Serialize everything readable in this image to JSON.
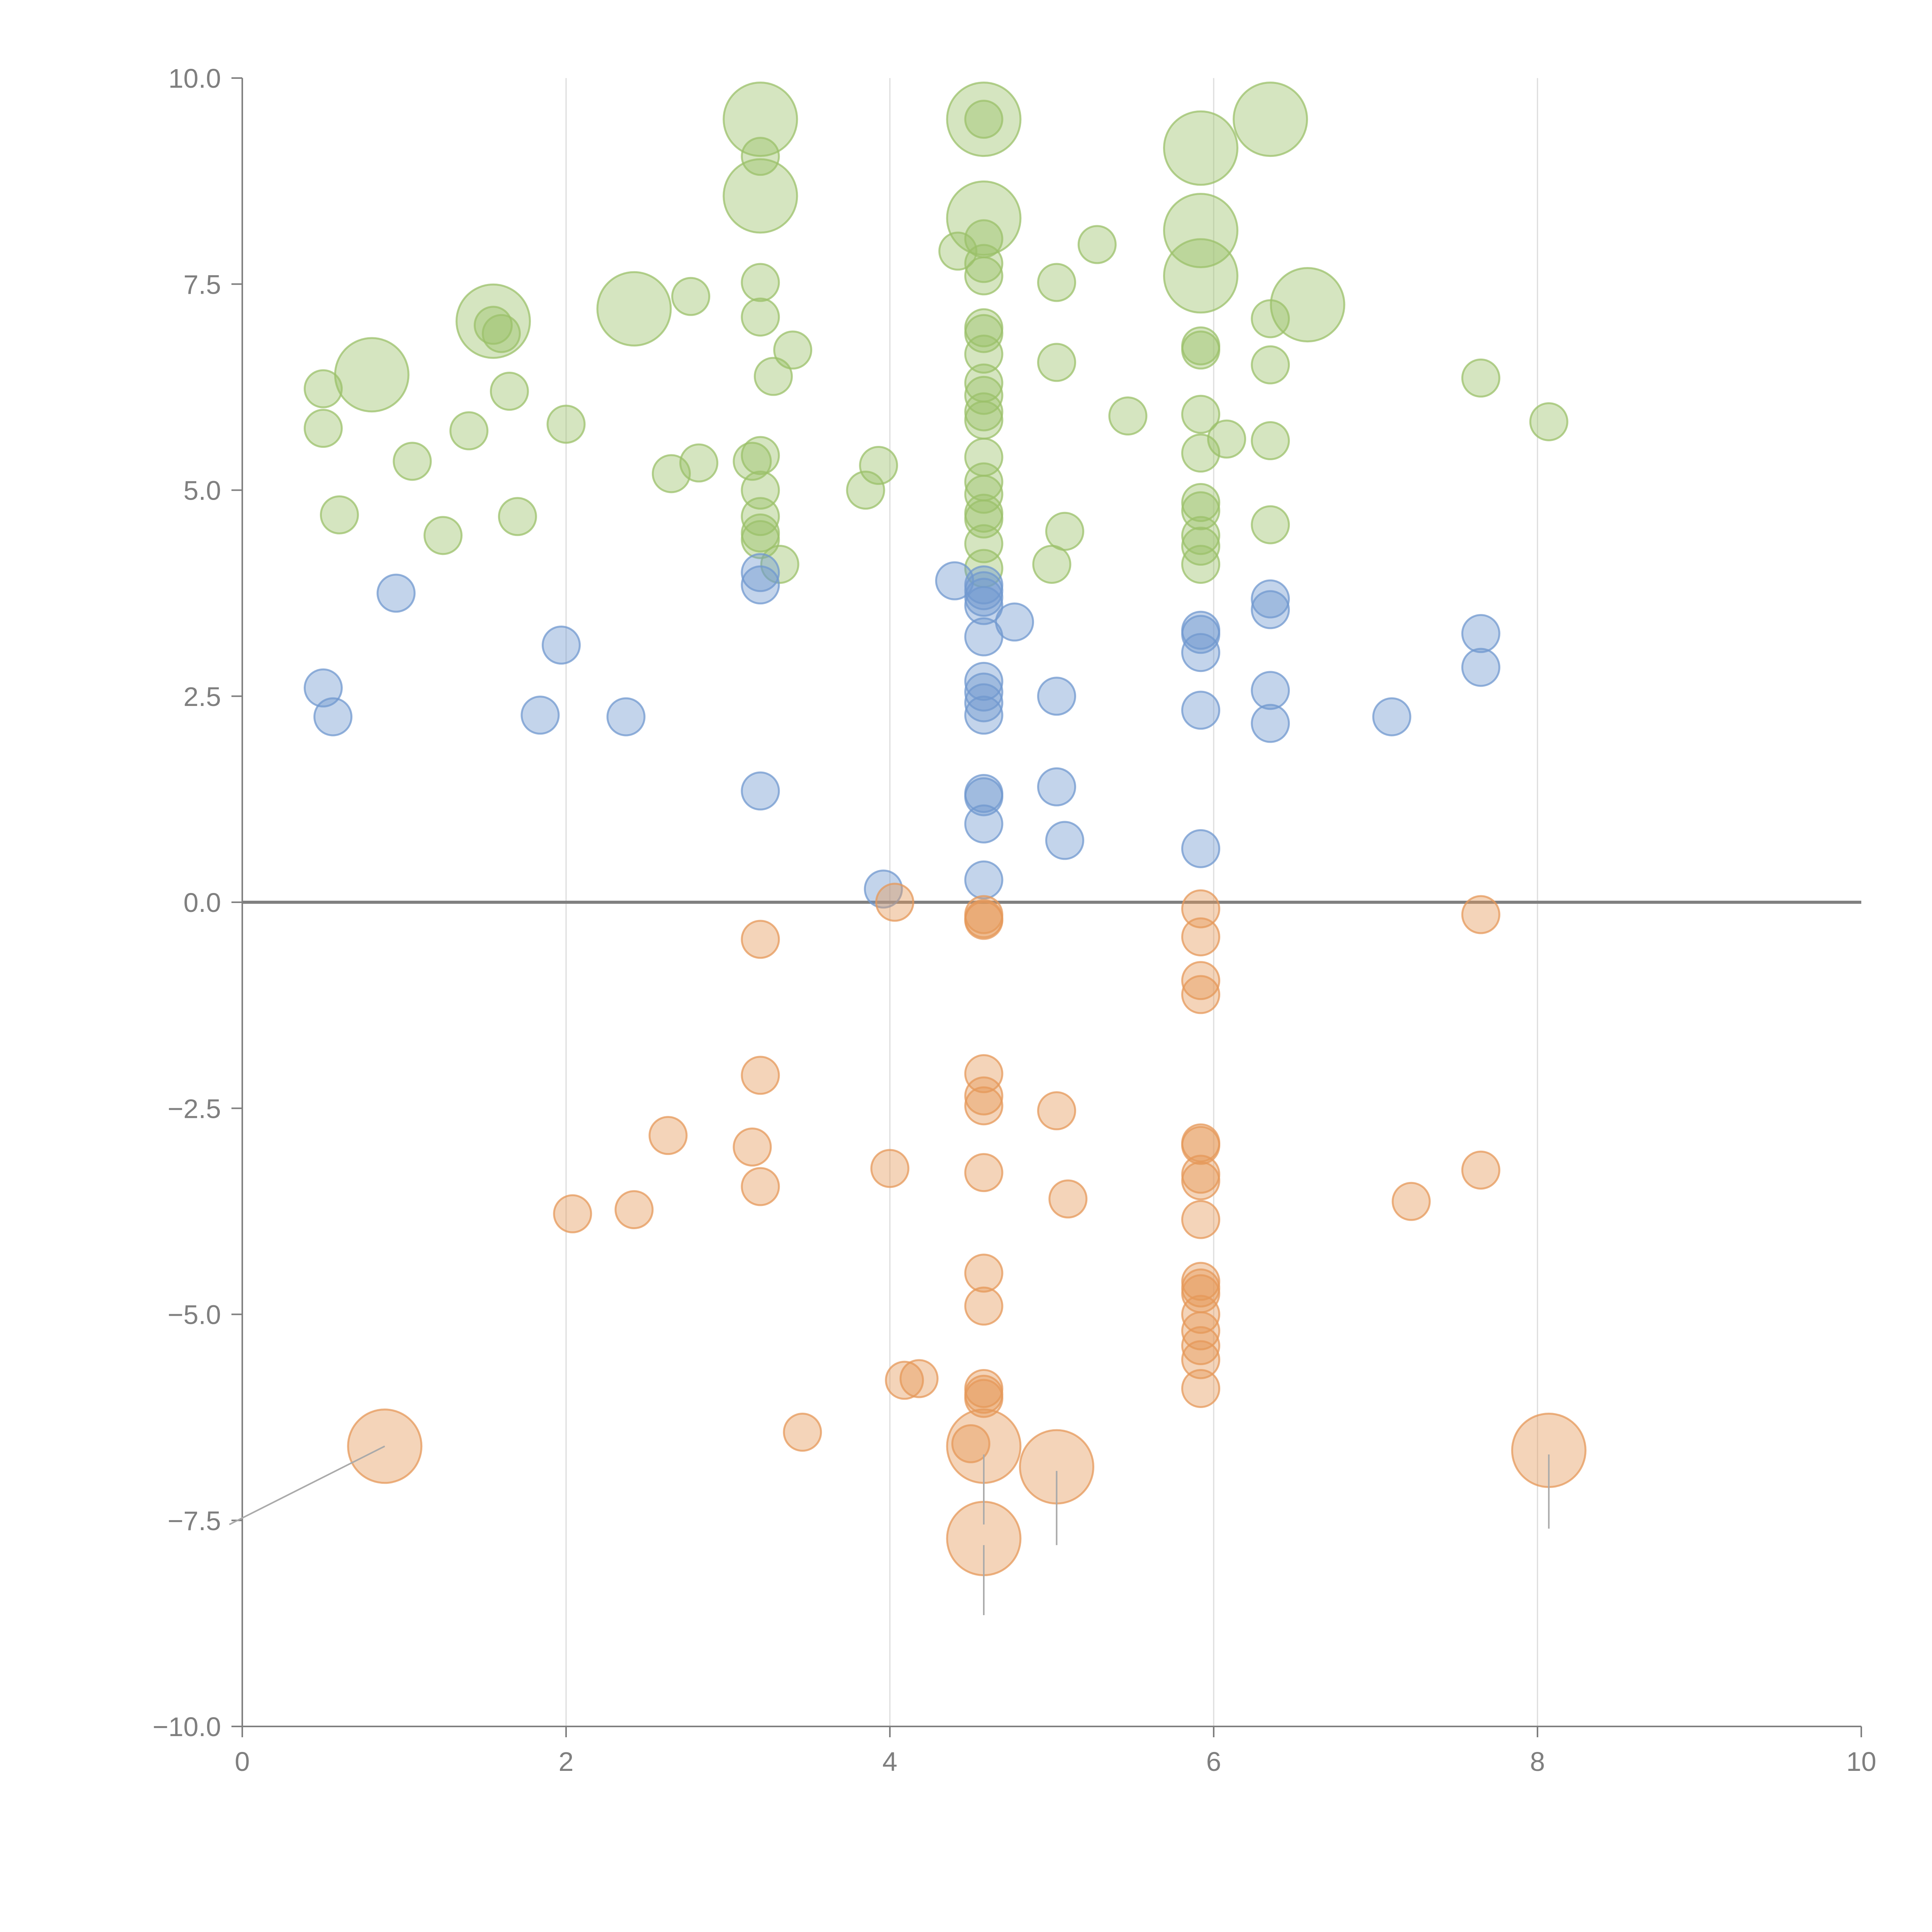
{
  "chart_data": {
    "type": "scatter",
    "title": "",
    "xlabel": "",
    "ylabel": "",
    "xlim": [
      0,
      10
    ],
    "ylim": [
      -10,
      10
    ],
    "grid": "vertical",
    "reference_line_y": 0,
    "x_ticks": [
      0,
      2,
      4,
      6,
      8,
      10
    ],
    "x_tick_labels": [
      "0",
      "2",
      "4",
      "6",
      "8",
      "10"
    ],
    "y_ticks": [
      -10,
      -7.5,
      -5,
      -2.5,
      0,
      2.5,
      5,
      7.5,
      10
    ],
    "y_tick_labels": [
      "−10.0",
      "−7.5",
      "−5.0",
      "−2.5",
      "0.0",
      "2.5",
      "5.0",
      "7.5",
      "10.0"
    ],
    "colors": {
      "green": "#9bc06a",
      "blue": "#7098cf",
      "orange": "#e59859",
      "axis": "#7f7f7f",
      "grid": "#dcdcdc",
      "label_text": "#ffffff"
    },
    "series": [
      {
        "name": "green",
        "color": "#9bc06a",
        "points": [
          {
            "x": 3.2,
            "y": 9.5,
            "size": 3
          },
          {
            "x": 4.58,
            "y": 9.5,
            "size": 3
          },
          {
            "x": 6.35,
            "y": 9.5,
            "size": 3
          },
          {
            "x": 5.92,
            "y": 9.15,
            "size": 3
          },
          {
            "x": 3.2,
            "y": 8.57,
            "size": 3
          },
          {
            "x": 4.58,
            "y": 8.3,
            "size": 3
          },
          {
            "x": 5.92,
            "y": 8.15,
            "size": 3
          },
          {
            "x": 5.92,
            "y": 7.6,
            "size": 3
          },
          {
            "x": 1.55,
            "y": 7.05,
            "size": 3
          },
          {
            "x": 2.42,
            "y": 7.2,
            "size": 3
          },
          {
            "x": 6.58,
            "y": 7.25,
            "size": 3
          },
          {
            "x": 0.8,
            "y": 6.4,
            "size": 3
          },
          {
            "x": 4.58,
            "y": 9.5,
            "size": 1
          },
          {
            "x": 3.2,
            "y": 9.05,
            "size": 1
          },
          {
            "x": 4.58,
            "y": 8.05,
            "size": 1
          },
          {
            "x": 5.28,
            "y": 7.98,
            "size": 1
          },
          {
            "x": 4.42,
            "y": 7.9,
            "size": 1
          },
          {
            "x": 4.58,
            "y": 7.75,
            "size": 1
          },
          {
            "x": 3.2,
            "y": 7.52,
            "size": 1
          },
          {
            "x": 4.58,
            "y": 7.6,
            "size": 1
          },
          {
            "x": 5.03,
            "y": 7.52,
            "size": 1
          },
          {
            "x": 2.77,
            "y": 7.35,
            "size": 1
          },
          {
            "x": 3.2,
            "y": 7.1,
            "size": 1
          },
          {
            "x": 1.55,
            "y": 7.0,
            "size": 1
          },
          {
            "x": 1.6,
            "y": 6.9,
            "size": 1
          },
          {
            "x": 6.35,
            "y": 7.08,
            "size": 1
          },
          {
            "x": 4.58,
            "y": 6.97,
            "size": 1
          },
          {
            "x": 4.58,
            "y": 6.9,
            "size": 1
          },
          {
            "x": 5.92,
            "y": 6.75,
            "size": 1
          },
          {
            "x": 5.92,
            "y": 6.7,
            "size": 1
          },
          {
            "x": 3.4,
            "y": 6.7,
            "size": 1
          },
          {
            "x": 4.58,
            "y": 6.65,
            "size": 1
          },
          {
            "x": 5.03,
            "y": 6.55,
            "size": 1
          },
          {
            "x": 6.35,
            "y": 6.52,
            "size": 1
          },
          {
            "x": 3.28,
            "y": 6.38,
            "size": 1
          },
          {
            "x": 7.65,
            "y": 6.36,
            "size": 1
          },
          {
            "x": 4.58,
            "y": 6.3,
            "size": 1
          },
          {
            "x": 0.5,
            "y": 6.23,
            "size": 1
          },
          {
            "x": 1.65,
            "y": 6.2,
            "size": 1
          },
          {
            "x": 4.58,
            "y": 6.15,
            "size": 1
          },
          {
            "x": 4.58,
            "y": 5.95,
            "size": 1
          },
          {
            "x": 5.47,
            "y": 5.9,
            "size": 1
          },
          {
            "x": 5.92,
            "y": 5.92,
            "size": 1
          },
          {
            "x": 4.58,
            "y": 5.85,
            "size": 1
          },
          {
            "x": 8.07,
            "y": 5.83,
            "size": 1
          },
          {
            "x": 2.0,
            "y": 5.8,
            "size": 1
          },
          {
            "x": 0.5,
            "y": 5.75,
            "size": 1
          },
          {
            "x": 1.4,
            "y": 5.72,
            "size": 1
          },
          {
            "x": 6.08,
            "y": 5.62,
            "size": 1
          },
          {
            "x": 6.35,
            "y": 5.6,
            "size": 1
          },
          {
            "x": 5.92,
            "y": 5.45,
            "size": 1
          },
          {
            "x": 3.2,
            "y": 5.42,
            "size": 1
          },
          {
            "x": 4.58,
            "y": 5.4,
            "size": 1
          },
          {
            "x": 3.15,
            "y": 5.35,
            "size": 1
          },
          {
            "x": 1.05,
            "y": 5.35,
            "size": 1
          },
          {
            "x": 2.82,
            "y": 5.33,
            "size": 1
          },
          {
            "x": 3.93,
            "y": 5.3,
            "size": 1
          },
          {
            "x": 2.65,
            "y": 5.2,
            "size": 1
          },
          {
            "x": 4.58,
            "y": 5.1,
            "size": 1
          },
          {
            "x": 3.85,
            "y": 5.0,
            "size": 1
          },
          {
            "x": 3.2,
            "y": 5.0,
            "size": 1
          },
          {
            "x": 4.58,
            "y": 4.95,
            "size": 1
          },
          {
            "x": 5.92,
            "y": 4.85,
            "size": 1
          },
          {
            "x": 5.92,
            "y": 4.75,
            "size": 1
          },
          {
            "x": 4.58,
            "y": 4.72,
            "size": 1
          },
          {
            "x": 0.6,
            "y": 4.7,
            "size": 1
          },
          {
            "x": 1.7,
            "y": 4.68,
            "size": 1
          },
          {
            "x": 3.2,
            "y": 4.68,
            "size": 1
          },
          {
            "x": 4.58,
            "y": 4.65,
            "size": 1
          },
          {
            "x": 6.35,
            "y": 4.58,
            "size": 1
          },
          {
            "x": 5.08,
            "y": 4.5,
            "size": 1
          },
          {
            "x": 3.2,
            "y": 4.48,
            "size": 1
          },
          {
            "x": 1.24,
            "y": 4.45,
            "size": 1
          },
          {
            "x": 5.92,
            "y": 4.45,
            "size": 1
          },
          {
            "x": 3.2,
            "y": 4.4,
            "size": 1
          },
          {
            "x": 4.58,
            "y": 4.35,
            "size": 1
          },
          {
            "x": 5.92,
            "y": 4.32,
            "size": 1
          },
          {
            "x": 3.32,
            "y": 4.1,
            "size": 1
          },
          {
            "x": 5.92,
            "y": 4.1,
            "size": 1
          },
          {
            "x": 5.0,
            "y": 4.1,
            "size": 1
          },
          {
            "x": 4.58,
            "y": 4.05,
            "size": 1
          }
        ]
      },
      {
        "name": "blue",
        "color": "#7098cf",
        "points": [
          {
            "x": 3.2,
            "y": 4.0,
            "size": 1
          },
          {
            "x": 4.4,
            "y": 3.9,
            "size": 1
          },
          {
            "x": 4.58,
            "y": 3.85,
            "size": 1
          },
          {
            "x": 3.2,
            "y": 3.85,
            "size": 1
          },
          {
            "x": 4.58,
            "y": 3.78,
            "size": 1
          },
          {
            "x": 0.95,
            "y": 3.75,
            "size": 1
          },
          {
            "x": 4.58,
            "y": 3.7,
            "size": 1
          },
          {
            "x": 6.35,
            "y": 3.68,
            "size": 1
          },
          {
            "x": 4.58,
            "y": 3.6,
            "size": 1
          },
          {
            "x": 6.35,
            "y": 3.55,
            "size": 1
          },
          {
            "x": 4.77,
            "y": 3.4,
            "size": 1
          },
          {
            "x": 5.92,
            "y": 3.3,
            "size": 1
          },
          {
            "x": 5.92,
            "y": 3.25,
            "size": 1
          },
          {
            "x": 7.65,
            "y": 3.26,
            "size": 1
          },
          {
            "x": 4.58,
            "y": 3.22,
            "size": 1
          },
          {
            "x": 1.97,
            "y": 3.12,
            "size": 1
          },
          {
            "x": 5.92,
            "y": 3.03,
            "size": 1
          },
          {
            "x": 7.65,
            "y": 2.85,
            "size": 1
          },
          {
            "x": 4.58,
            "y": 2.68,
            "size": 1
          },
          {
            "x": 0.5,
            "y": 2.6,
            "size": 1
          },
          {
            "x": 6.35,
            "y": 2.57,
            "size": 1
          },
          {
            "x": 4.58,
            "y": 2.55,
            "size": 1
          },
          {
            "x": 5.03,
            "y": 2.5,
            "size": 1
          },
          {
            "x": 4.58,
            "y": 2.42,
            "size": 1
          },
          {
            "x": 5.92,
            "y": 2.33,
            "size": 1
          },
          {
            "x": 4.58,
            "y": 2.27,
            "size": 1
          },
          {
            "x": 1.84,
            "y": 2.27,
            "size": 1
          },
          {
            "x": 0.56,
            "y": 2.25,
            "size": 1
          },
          {
            "x": 2.37,
            "y": 2.25,
            "size": 1
          },
          {
            "x": 7.1,
            "y": 2.25,
            "size": 1
          },
          {
            "x": 6.35,
            "y": 2.17,
            "size": 1
          },
          {
            "x": 5.03,
            "y": 1.4,
            "size": 1
          },
          {
            "x": 3.2,
            "y": 1.35,
            "size": 1
          },
          {
            "x": 4.58,
            "y": 1.32,
            "size": 1
          },
          {
            "x": 4.58,
            "y": 1.28,
            "size": 1
          },
          {
            "x": 4.58,
            "y": 0.95,
            "size": 1
          },
          {
            "x": 5.08,
            "y": 0.75,
            "size": 1
          },
          {
            "x": 5.92,
            "y": 0.65,
            "size": 1
          },
          {
            "x": 4.58,
            "y": 0.27,
            "size": 1
          },
          {
            "x": 3.96,
            "y": 0.16,
            "size": 1
          }
        ]
      },
      {
        "name": "orange",
        "color": "#e59859",
        "points": [
          {
            "x": 4.03,
            "y": 0.0,
            "size": 1
          },
          {
            "x": 5.92,
            "y": -0.08,
            "size": 1
          },
          {
            "x": 4.58,
            "y": -0.15,
            "size": 1
          },
          {
            "x": 7.65,
            "y": -0.15,
            "size": 1
          },
          {
            "x": 4.58,
            "y": -0.2,
            "size": 1
          },
          {
            "x": 4.58,
            "y": -0.22,
            "size": 1
          },
          {
            "x": 3.2,
            "y": -0.45,
            "size": 1
          },
          {
            "x": 5.92,
            "y": -0.42,
            "size": 1
          },
          {
            "x": 5.92,
            "y": -0.95,
            "size": 1
          },
          {
            "x": 5.92,
            "y": -1.12,
            "size": 1
          },
          {
            "x": 4.58,
            "y": -2.08,
            "size": 1
          },
          {
            "x": 3.2,
            "y": -2.1,
            "size": 1
          },
          {
            "x": 4.58,
            "y": -2.35,
            "size": 1
          },
          {
            "x": 4.58,
            "y": -2.47,
            "size": 1
          },
          {
            "x": 5.03,
            "y": -2.53,
            "size": 1
          },
          {
            "x": 2.63,
            "y": -2.83,
            "size": 1
          },
          {
            "x": 5.92,
            "y": -2.92,
            "size": 1
          },
          {
            "x": 5.92,
            "y": -2.95,
            "size": 1
          },
          {
            "x": 3.15,
            "y": -2.97,
            "size": 1
          },
          {
            "x": 4.0,
            "y": -3.23,
            "size": 1
          },
          {
            "x": 7.65,
            "y": -3.25,
            "size": 1
          },
          {
            "x": 4.58,
            "y": -3.28,
            "size": 1
          },
          {
            "x": 5.92,
            "y": -3.3,
            "size": 1
          },
          {
            "x": 5.92,
            "y": -3.38,
            "size": 1
          },
          {
            "x": 3.2,
            "y": -3.45,
            "size": 1
          },
          {
            "x": 5.1,
            "y": -3.6,
            "size": 1
          },
          {
            "x": 7.22,
            "y": -3.63,
            "size": 1
          },
          {
            "x": 2.42,
            "y": -3.73,
            "size": 1
          },
          {
            "x": 2.04,
            "y": -3.78,
            "size": 1
          },
          {
            "x": 5.92,
            "y": -3.85,
            "size": 1
          },
          {
            "x": 4.58,
            "y": -4.5,
            "size": 1
          },
          {
            "x": 5.92,
            "y": -4.6,
            "size": 1
          },
          {
            "x": 5.92,
            "y": -4.68,
            "size": 1
          },
          {
            "x": 5.92,
            "y": -4.75,
            "size": 1
          },
          {
            "x": 4.58,
            "y": -4.9,
            "size": 1
          },
          {
            "x": 5.92,
            "y": -5.0,
            "size": 1
          },
          {
            "x": 5.92,
            "y": -5.2,
            "size": 1
          },
          {
            "x": 5.92,
            "y": -5.38,
            "size": 1
          },
          {
            "x": 5.92,
            "y": -5.55,
            "size": 1
          },
          {
            "x": 4.18,
            "y": -5.78,
            "size": 1
          },
          {
            "x": 4.09,
            "y": -5.8,
            "size": 1
          },
          {
            "x": 5.92,
            "y": -5.9,
            "size": 1
          },
          {
            "x": 4.58,
            "y": -5.9,
            "size": 1
          },
          {
            "x": 4.58,
            "y": -5.97,
            "size": 1
          },
          {
            "x": 4.58,
            "y": -6.02,
            "size": 1
          },
          {
            "x": 3.46,
            "y": -6.43,
            "size": 1
          },
          {
            "x": 4.5,
            "y": -6.57,
            "size": 1
          },
          {
            "x": 0.88,
            "y": -6.6,
            "size": 3
          },
          {
            "x": 4.58,
            "y": -6.6,
            "size": 3
          },
          {
            "x": 8.07,
            "y": -6.65,
            "size": 3
          },
          {
            "x": 5.03,
            "y": -6.85,
            "size": 3
          },
          {
            "x": 4.58,
            "y": -7.72,
            "size": 3
          }
        ]
      }
    ],
    "annotation_leaders": [
      {
        "x1": 0.88,
        "y1": -6.6,
        "x2": -0.08,
        "y2": -7.55
      },
      {
        "x1": 4.58,
        "y1": -6.7,
        "x2": 4.58,
        "y2": -7.55
      },
      {
        "x1": 5.03,
        "y1": -6.9,
        "x2": 5.03,
        "y2": -7.8
      },
      {
        "x1": 8.07,
        "y1": -6.7,
        "x2": 8.07,
        "y2": -7.6
      },
      {
        "x1": 4.58,
        "y1": -7.8,
        "x2": 4.58,
        "y2": -8.65
      }
    ]
  }
}
